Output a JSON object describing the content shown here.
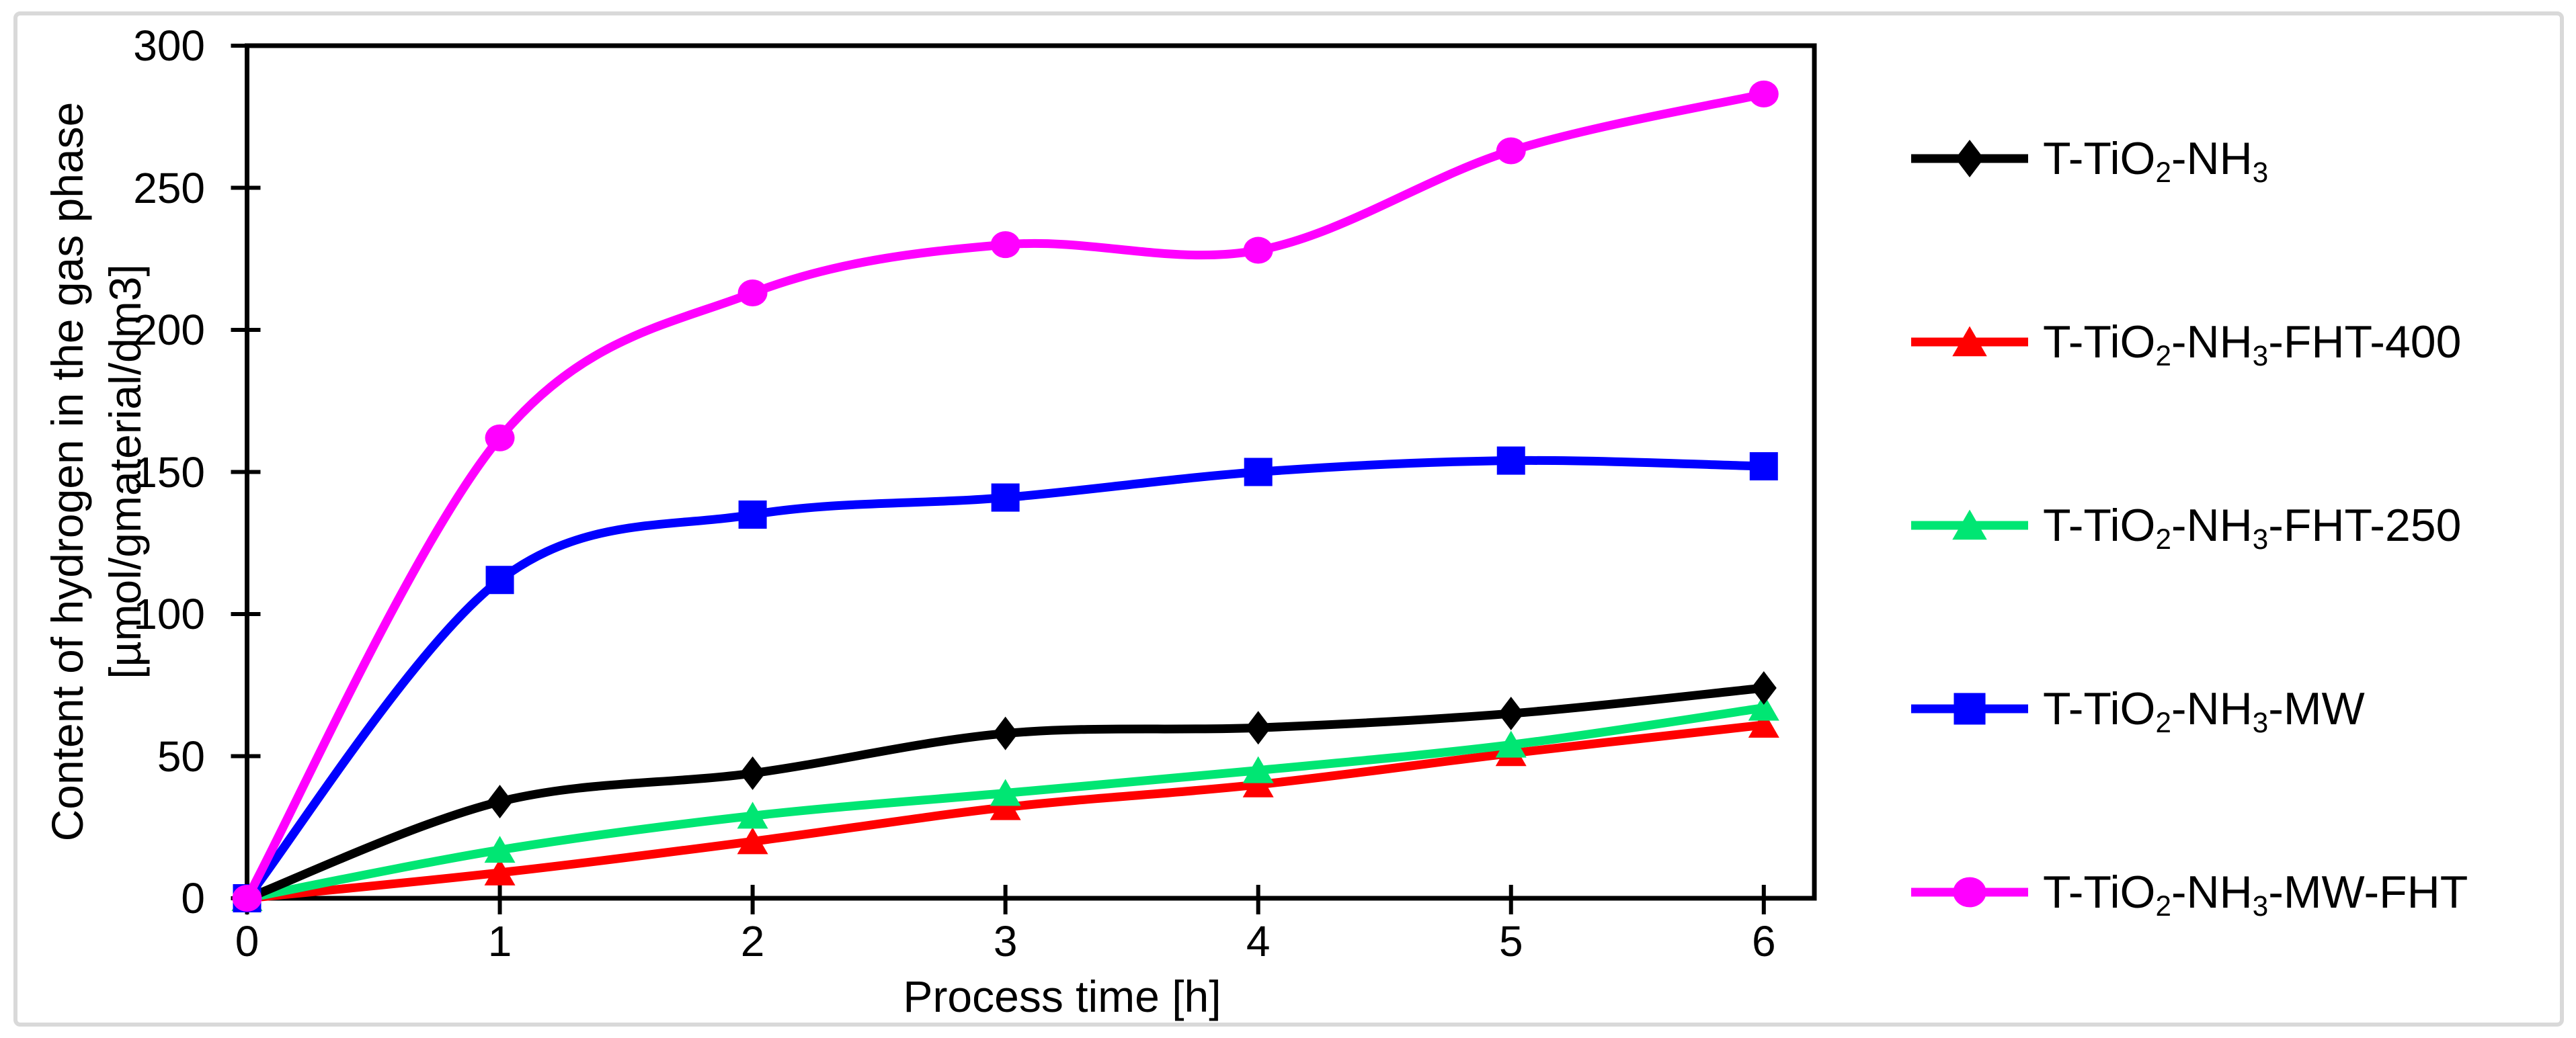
{
  "figure": {
    "background_color": "#FFFFFF",
    "border_color": "#D9D9D9"
  },
  "chart_data": {
    "type": "line",
    "title": "",
    "xlabel": "Process time [h]",
    "ylabel_line1": "Content of hydrogen in the gas phase",
    "ylabel_line2": "[µmol/gmaterial/dm3]",
    "x": [
      0,
      1,
      2,
      3,
      4,
      5,
      6
    ],
    "x_ticks": [
      0,
      1,
      2,
      3,
      4,
      5,
      6
    ],
    "y_ticks": [
      0,
      50,
      100,
      150,
      200,
      250,
      300
    ],
    "xlim": [
      0,
      6.2
    ],
    "ylim": [
      0,
      300
    ],
    "grid": false,
    "smooth_lines": true,
    "legend_position": "right",
    "axis_color": "#000000",
    "series": [
      {
        "name": "T-TiO₂-NH₃",
        "name_parts": [
          [
            "T-TiO",
            false
          ],
          [
            "2",
            true
          ],
          [
            "-NH",
            false
          ],
          [
            "3",
            true
          ]
        ],
        "color": "#000000",
        "marker": "diamond",
        "values": [
          0,
          34,
          44,
          58,
          60,
          65,
          74
        ]
      },
      {
        "name": "T-TiO₂-NH₃-FHT-400",
        "name_parts": [
          [
            "T-TiO",
            false
          ],
          [
            "2",
            true
          ],
          [
            "-NH",
            false
          ],
          [
            "3",
            true
          ],
          [
            "-FHT-400",
            false
          ]
        ],
        "color": "#FF0000",
        "marker": "triangle",
        "values": [
          0,
          9,
          20,
          32,
          40,
          51,
          61
        ]
      },
      {
        "name": "T-TiO₂-NH₃-FHT-250",
        "name_parts": [
          [
            "T-TiO",
            false
          ],
          [
            "2",
            true
          ],
          [
            "-NH",
            false
          ],
          [
            "3",
            true
          ],
          [
            "-FHT-250",
            false
          ]
        ],
        "color": "#00E673",
        "marker": "triangle",
        "values": [
          0,
          17,
          29,
          37,
          45,
          54,
          67
        ]
      },
      {
        "name": "T-TiO₂-NH₃-MW",
        "name_parts": [
          [
            "T-TiO",
            false
          ],
          [
            "2",
            true
          ],
          [
            "-NH",
            false
          ],
          [
            "3",
            true
          ],
          [
            "-MW",
            false
          ]
        ],
        "color": "#0000FF",
        "marker": "square",
        "values": [
          0,
          112,
          135,
          141,
          150,
          154,
          152
        ]
      },
      {
        "name": "T-TiO₂-NH₃-MW-FHT",
        "name_parts": [
          [
            "T-TiO",
            false
          ],
          [
            "2",
            true
          ],
          [
            "-NH",
            false
          ],
          [
            "3",
            true
          ],
          [
            "-MW-FHT",
            false
          ]
        ],
        "color": "#FF00FF",
        "marker": "circle",
        "values": [
          0,
          162,
          213,
          230,
          228,
          263,
          283
        ]
      }
    ],
    "draw_order": [
      1,
      2,
      0,
      3,
      4
    ]
  }
}
